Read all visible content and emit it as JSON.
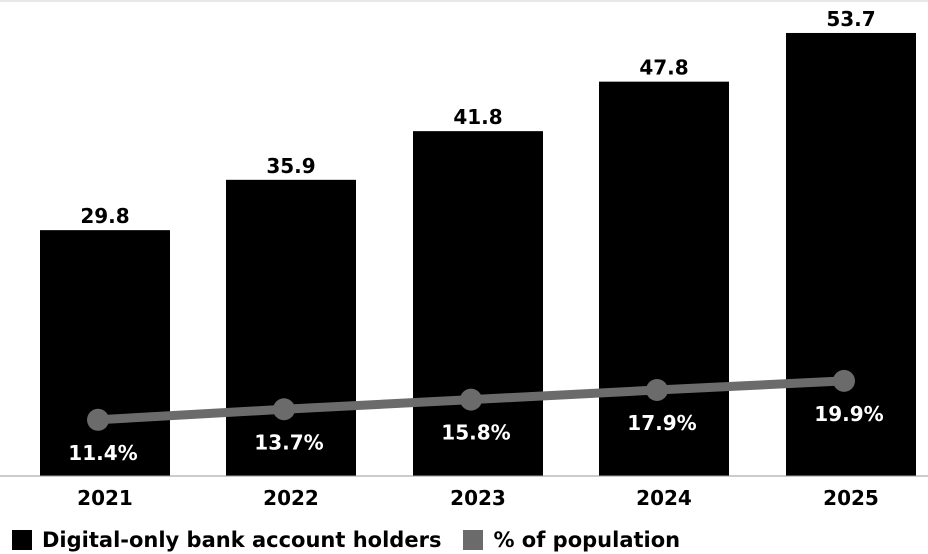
{
  "chart_data": {
    "type": "bar",
    "categories": [
      "2021",
      "2022",
      "2023",
      "2024",
      "2025"
    ],
    "series": [
      {
        "name": "Digital-only bank account holders",
        "type": "bar",
        "values": [
          29.8,
          35.9,
          41.8,
          47.8,
          53.7
        ],
        "labels": [
          "29.8",
          "35.9",
          "41.8",
          "47.8",
          "53.7"
        ],
        "color": "#000000"
      },
      {
        "name": "% of population",
        "type": "line",
        "values": [
          11.4,
          13.7,
          15.8,
          17.9,
          19.9
        ],
        "labels": [
          "11.4%",
          "13.7%",
          "15.8%",
          "17.9%",
          "19.9%"
        ],
        "color": "#6b6b6b"
      }
    ],
    "grid": false,
    "legend_position": "bottom-left"
  },
  "legend": {
    "bars_label": "Digital-only bank account holders",
    "line_label": "% of population"
  }
}
